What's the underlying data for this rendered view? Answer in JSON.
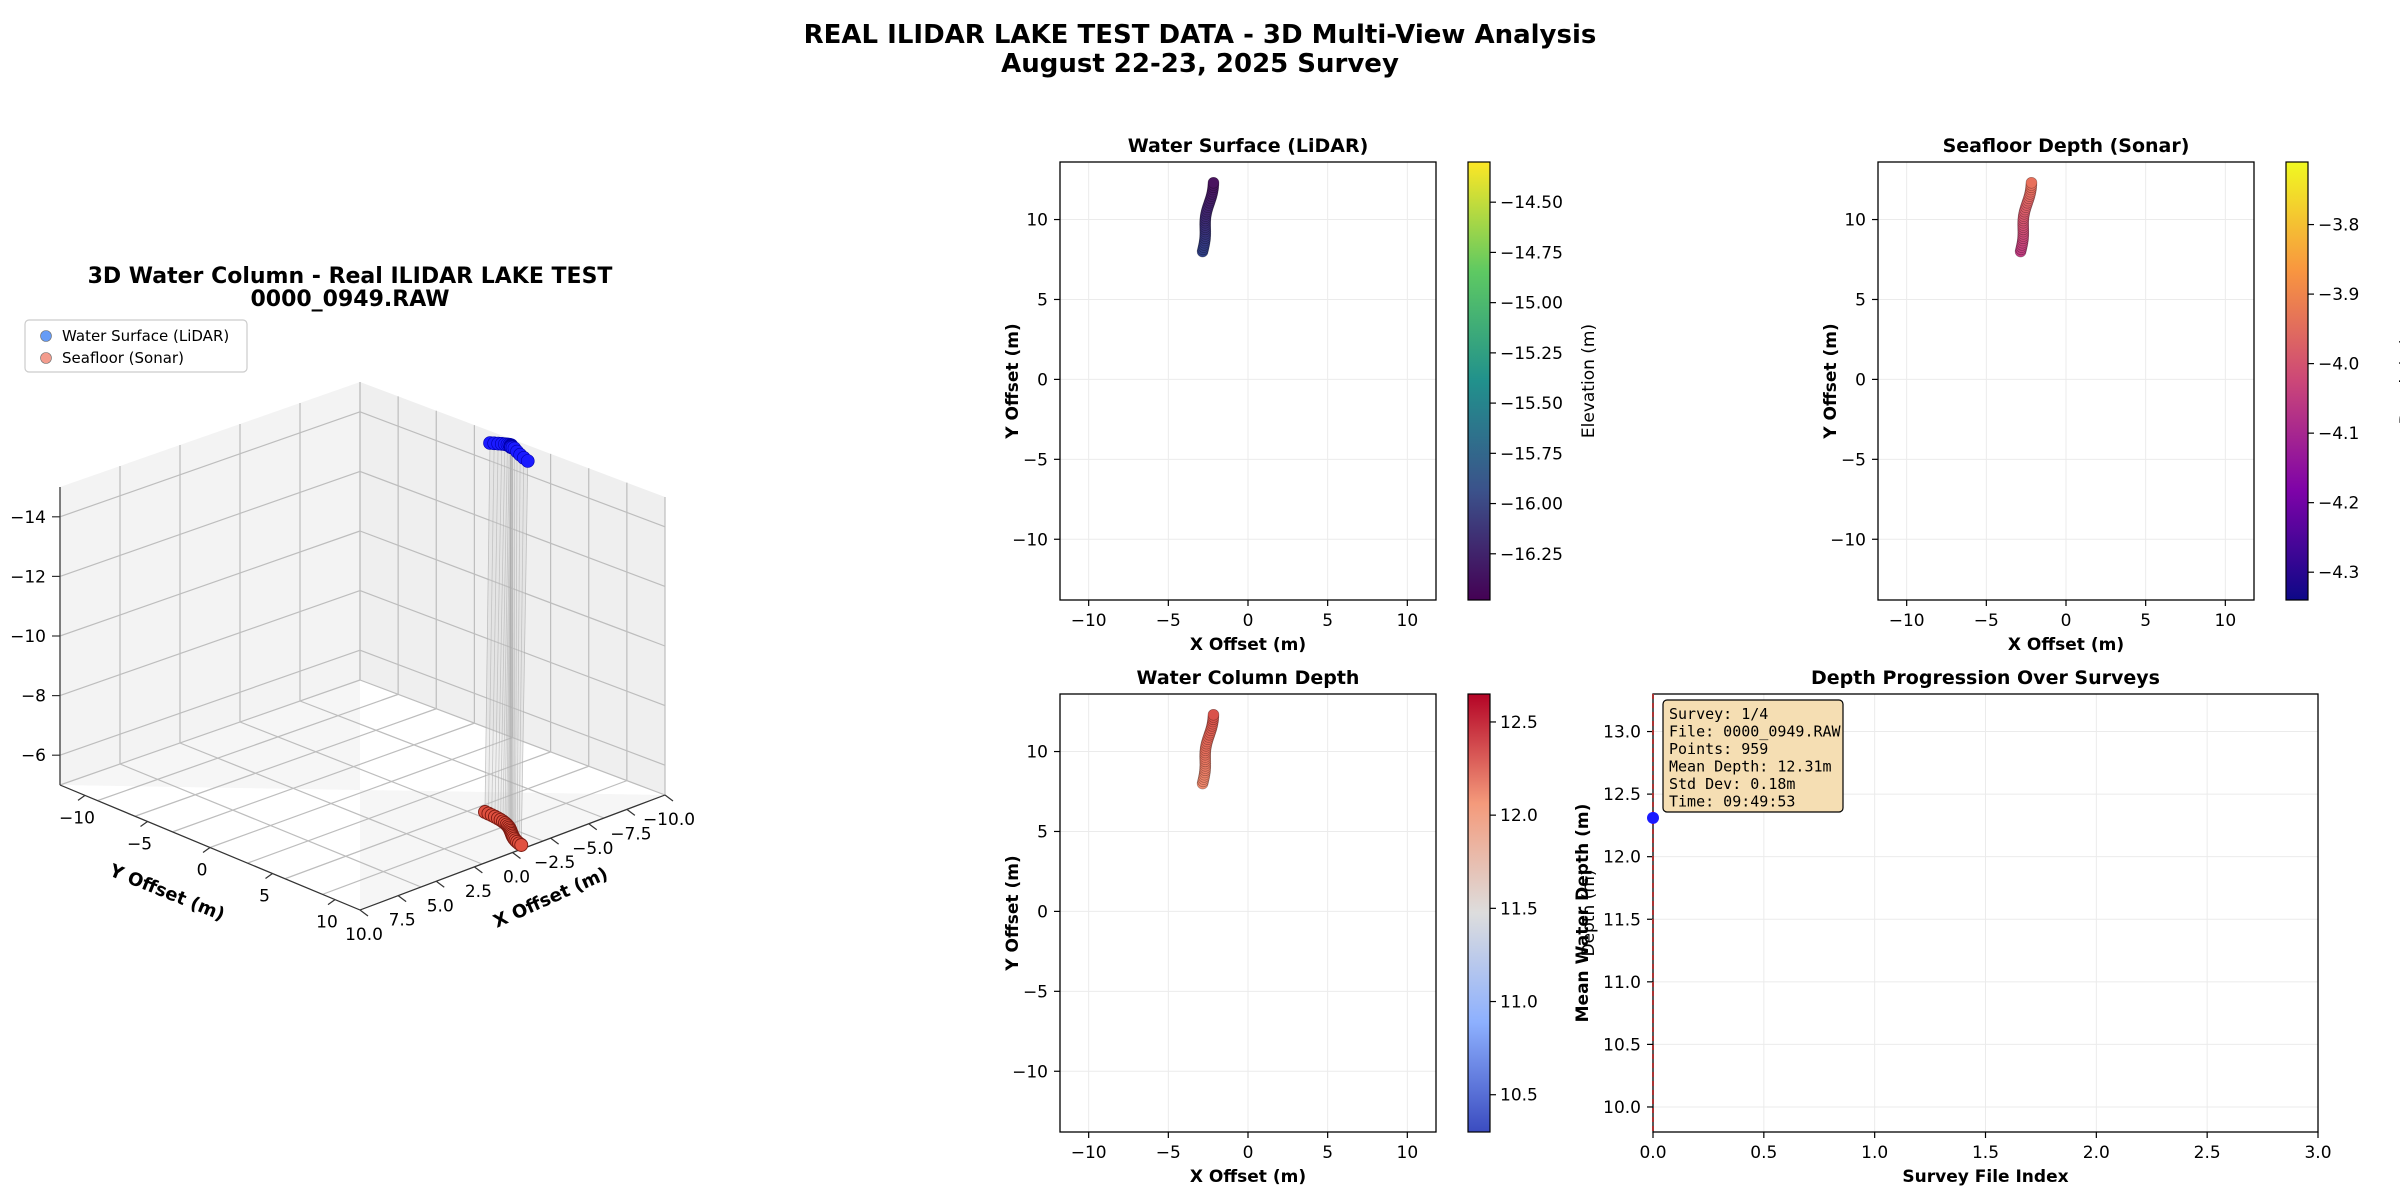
{
  "figure": {
    "title_line1": "REAL ILIDAR LAKE TEST DATA - 3D Multi-View Analysis",
    "title_line2": "August 22-23, 2025 Survey"
  },
  "chart_data": [
    {
      "id": "3d",
      "type": "scatter3d",
      "title_line1": "3D Water Column - Real ILIDAR LAKE TEST",
      "title_line2": "0000_0949.RAW",
      "xlabel": "X Offset (m)",
      "ylabel": "Y Offset (m)",
      "zlabel": "",
      "x_ticks": [
        "-10.0",
        "-7.5",
        "-5.0",
        "-2.5",
        "0.0",
        "2.5",
        "5.0",
        "7.5",
        "10.0"
      ],
      "y_ticks": [
        "-10",
        "-5",
        "0",
        "5",
        "10"
      ],
      "z_ticks": [
        "-14",
        "-12",
        "-10",
        "-8",
        "-6"
      ],
      "xlim": [
        -10,
        10
      ],
      "ylim": [
        -12,
        12
      ],
      "zlim": [
        -15,
        -5
      ],
      "legend": [
        {
          "name": "Water Surface (LiDAR)",
          "color": "#4c8bf5"
        },
        {
          "name": "Seafloor (Sonar)",
          "color": "#f28b7a"
        }
      ],
      "surface": {
        "color": "#1a1aff",
        "x_range": [
          -2.9,
          -2.0
        ],
        "y_range": [
          8.0,
          12.3
        ],
        "z_approx": -16.2
      },
      "seafloor": {
        "color": "#e04a3a",
        "x_range": [
          -2.9,
          -2.0
        ],
        "y_range": [
          8.0,
          12.3
        ],
        "z_approx": -4.0
      }
    },
    {
      "id": "surface",
      "type": "scatter",
      "title": "Water Surface (LiDAR)",
      "xlabel": "X Offset (m)",
      "ylabel": "Y Offset (m)",
      "xlim": [
        -11.8,
        11.8
      ],
      "ylim": [
        -13.8,
        13.6
      ],
      "x_ticks": [
        -10,
        -5,
        0,
        5,
        10
      ],
      "y_ticks": [
        -10,
        -5,
        0,
        5,
        10
      ],
      "colorbar": {
        "label": "Elevation (m)",
        "cmap": "viridis",
        "range": [
          -16.48,
          -14.3
        ],
        "ticks": [
          "-14.50",
          "-14.75",
          "-15.00",
          "-15.25",
          "-15.50",
          "-15.75",
          "-16.00",
          "-16.25"
        ],
        "tick_values": [
          -14.5,
          -14.75,
          -15.0,
          -15.25,
          -15.5,
          -15.75,
          -16.0,
          -16.25
        ]
      },
      "points": {
        "x_start": -2.85,
        "y_start": 8.0,
        "x_end": -2.2,
        "y_end": 12.3,
        "color_start": "#2f3f86",
        "color_end": "#4a145f"
      }
    },
    {
      "id": "seafloor",
      "type": "scatter",
      "title": "Seafloor Depth (Sonar)",
      "xlabel": "X Offset (m)",
      "ylabel": "Y Offset (m)",
      "xlim": [
        -11.8,
        11.8
      ],
      "ylim": [
        -13.8,
        13.6
      ],
      "x_ticks": [
        -10,
        -5,
        0,
        5,
        10
      ],
      "y_ticks": [
        -10,
        -5,
        0,
        5,
        10
      ],
      "colorbar": {
        "label": "Depth (m)",
        "cmap": "plasma",
        "range": [
          -4.34,
          -3.71
        ],
        "ticks": [
          "-3.8",
          "-3.9",
          "-4.0",
          "-4.1",
          "-4.2",
          "-4.3"
        ],
        "tick_values": [
          -3.8,
          -3.9,
          -4.0,
          -4.1,
          -4.2,
          -4.3
        ]
      },
      "points": {
        "x_start": -2.85,
        "y_start": 8.0,
        "x_end": -2.2,
        "y_end": 12.3,
        "color_start": "#c23c81",
        "color_end": "#e8705b"
      }
    },
    {
      "id": "column",
      "type": "scatter",
      "title": "Water Column Depth",
      "xlabel": "X Offset (m)",
      "ylabel": "Y Offset (m)",
      "xlim": [
        -11.8,
        11.8
      ],
      "ylim": [
        -13.8,
        13.6
      ],
      "x_ticks": [
        -10,
        -5,
        0,
        5,
        10
      ],
      "y_ticks": [
        -10,
        -5,
        0,
        5,
        10
      ],
      "colorbar": {
        "label": "Depth (m)",
        "cmap": "coolwarm",
        "range": [
          10.3,
          12.65
        ],
        "ticks": [
          "12.5",
          "12.0",
          "11.5",
          "11.0",
          "10.5"
        ],
        "tick_values": [
          12.5,
          12.0,
          11.5,
          11.0,
          10.5
        ]
      },
      "points": {
        "x_start": -2.85,
        "y_start": 8.0,
        "x_end": -2.2,
        "y_end": 12.3,
        "color_start": "#f08a6e",
        "color_end": "#d9524a"
      }
    },
    {
      "id": "progression",
      "type": "line",
      "title": "Depth Progression Over Surveys",
      "xlabel": "Survey File Index",
      "ylabel": "Mean Water Depth (m)",
      "xlim": [
        0,
        3
      ],
      "ylim": [
        9.8,
        13.3
      ],
      "x_ticks": [
        "0.0",
        "0.5",
        "1.0",
        "1.5",
        "2.0",
        "2.5",
        "3.0"
      ],
      "x_tick_values": [
        0,
        0.5,
        1.0,
        1.5,
        2.0,
        2.5,
        3.0
      ],
      "y_ticks": [
        "10.0",
        "10.5",
        "11.0",
        "11.5",
        "12.0",
        "12.5",
        "13.0"
      ],
      "y_tick_values": [
        10.0,
        10.5,
        11.0,
        11.5,
        12.0,
        12.5,
        13.0
      ],
      "series": [
        {
          "x": [
            0
          ],
          "y": [
            12.31
          ],
          "color": "#1a1aff"
        }
      ],
      "marker_line_x": 0,
      "info_box": [
        "Survey: 1/4",
        "File: 0000_0949.RAW",
        "Points: 959",
        "Mean Depth: 12.31m",
        "Std Dev: 0.18m",
        "Time: 09:49:53"
      ]
    }
  ]
}
